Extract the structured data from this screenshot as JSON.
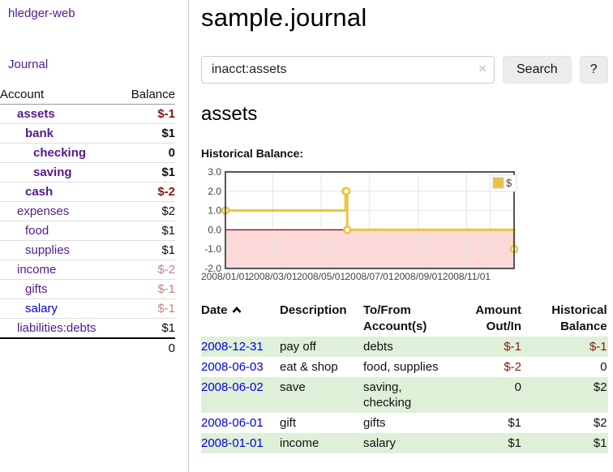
{
  "app": {
    "title": "hledger-web"
  },
  "nav": {
    "journal_label": "Journal"
  },
  "sidebar_table": {
    "headers": {
      "account": "Account",
      "balance": "Balance"
    },
    "rows": [
      {
        "name": "assets",
        "indent": 1,
        "bold": true,
        "balance": "$-1",
        "balance_style": "neg-strong"
      },
      {
        "name": "bank",
        "indent": 2,
        "bold": true,
        "balance": "$1",
        "balance_style": "pos"
      },
      {
        "name": "checking",
        "indent": 3,
        "bold": true,
        "balance": "0",
        "balance_style": "pos"
      },
      {
        "name": "saving",
        "indent": 3,
        "bold": true,
        "balance": "$1",
        "balance_style": "pos"
      },
      {
        "name": "cash",
        "indent": 2,
        "bold": true,
        "balance": "$-2",
        "balance_style": "neg-strong"
      },
      {
        "name": "expenses",
        "indent": 1,
        "bold": false,
        "balance": "$2",
        "balance_style": "pos"
      },
      {
        "name": "food",
        "indent": 2,
        "bold": false,
        "balance": "$1",
        "balance_style": "pos"
      },
      {
        "name": "supplies",
        "indent": 2,
        "bold": false,
        "balance": "$1",
        "balance_style": "pos"
      },
      {
        "name": "income",
        "indent": 1,
        "bold": false,
        "balance": "$-2",
        "balance_style": "neg-muted"
      },
      {
        "name": "gifts",
        "indent": 2,
        "bold": false,
        "balance": "$-1",
        "balance_style": "neg-muted"
      },
      {
        "name": "salary",
        "indent": 2,
        "bold": false,
        "link_color": "blue",
        "balance": "$-1",
        "balance_style": "neg-muted"
      },
      {
        "name": "liabilities:debts",
        "indent": 1,
        "bold": false,
        "balance": "$1",
        "balance_style": "pos"
      }
    ],
    "total": "0"
  },
  "header": {
    "title": "sample.journal"
  },
  "search": {
    "value": "inacct:assets",
    "clear_icon": "×",
    "button_label": "Search",
    "help_label": "?"
  },
  "account_page": {
    "title": "assets",
    "chart_label": "Historical Balance:"
  },
  "chart_data": {
    "type": "line",
    "step": true,
    "series": [
      {
        "name": "$",
        "color": "#edc240",
        "points": [
          [
            "2008-01-01",
            1
          ],
          [
            "2008-06-01",
            2
          ],
          [
            "2008-06-02",
            2
          ],
          [
            "2008-06-03",
            0
          ],
          [
            "2008-12-31",
            -1
          ]
        ]
      }
    ],
    "xlim": [
      "2008-01-01",
      "2008-12-31"
    ],
    "ylim": [
      -2,
      3
    ],
    "y_ticks": [
      "3.0",
      "2.0",
      "1.0",
      "0.0",
      "-1.0",
      "-2.0"
    ],
    "y_tick_values": [
      3,
      2,
      1,
      0,
      -1,
      -2
    ],
    "x_ticks": [
      "2008/01/01",
      "2008/03/01",
      "2008/05/01",
      "2008/07/01",
      "2008/09/01",
      "2008/11/01"
    ],
    "x_gridline_dates": [
      "2008-01-01",
      "2008-03-01",
      "2008-05-01",
      "2008-07-01",
      "2008-09-01",
      "2008-11-01",
      "2008-12-01"
    ],
    "grid": true,
    "negative_region_color": "#fcdada",
    "zero_line_color": "#8b0000",
    "grid_color": "#e6e6e6",
    "border_color": "#545454",
    "tick_label_color": "#444444",
    "legend": {
      "label": "$",
      "swatch_color": "#edc240",
      "position": "top-right"
    }
  },
  "register": {
    "headers": {
      "date": "Date",
      "description": "Description",
      "account": "To/From Account(s)",
      "amount": "Amount Out/In",
      "balance": "Historical Balance"
    },
    "rows": [
      {
        "date": "2008-12-31",
        "description": "pay off",
        "accounts": "debts",
        "amount": "$-1",
        "amount_neg": true,
        "balance": "$-1",
        "balance_neg": true,
        "shade": true
      },
      {
        "date": "2008-06-03",
        "description": "eat & shop",
        "accounts": "food, supplies",
        "amount": "$-2",
        "amount_neg": true,
        "balance": "0",
        "balance_neg": false,
        "shade": false
      },
      {
        "date": "2008-06-02",
        "description": "save",
        "accounts": "saving, checking",
        "amount": "0",
        "amount_neg": false,
        "balance": "$2",
        "balance_neg": false,
        "shade": true
      },
      {
        "date": "2008-06-01",
        "description": "gift",
        "accounts": "gifts",
        "amount": "$1",
        "amount_neg": false,
        "balance": "$2",
        "balance_neg": false,
        "shade": false
      },
      {
        "date": "2008-01-01",
        "description": "income",
        "accounts": "salary",
        "amount": "$1",
        "amount_neg": false,
        "balance": "$1",
        "balance_neg": false,
        "shade": true
      }
    ]
  },
  "colors": {
    "link_purple": "#551a8b",
    "link_blue": "#0000dd",
    "negative_strong": "#8b1414",
    "negative_muted": "#c8827f",
    "row_green": "#dff0d8",
    "series_gold": "#edc240",
    "chart_negative_area": "#fcdada",
    "zero_line": "#8b0000"
  }
}
